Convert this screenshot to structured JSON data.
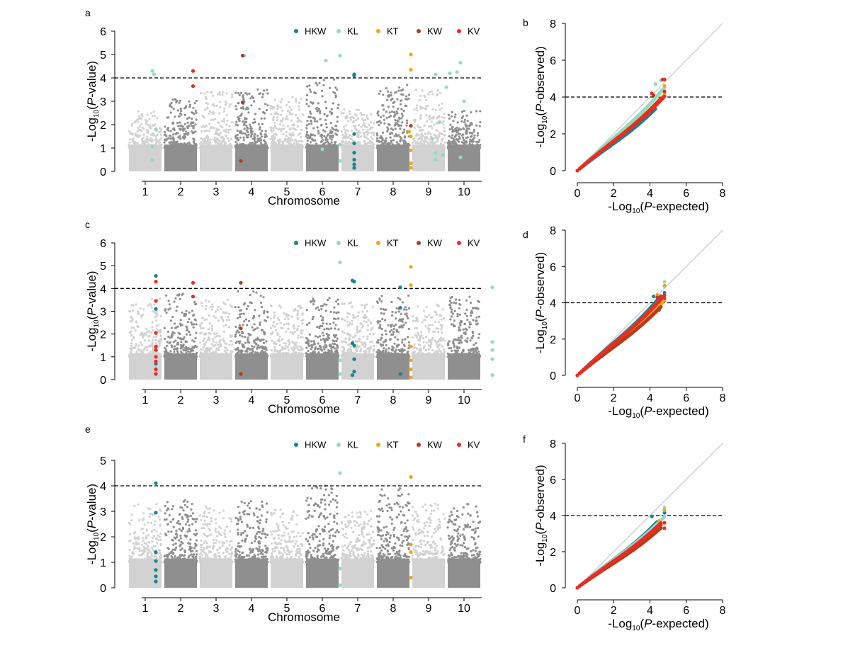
{
  "colors": {
    "chr_light": "#d2d2d2",
    "chr_dark": "#8f8f8f",
    "HKW": "#14858e",
    "KL": "#8fdcc6",
    "KT": "#f5a31a",
    "KW": "#b23e18",
    "KV": "#ee2a24",
    "diagonal": "#c8c8c8"
  },
  "legend": [
    "HKW",
    "KL",
    "KT",
    "KW",
    "KV"
  ],
  "chart_data": [
    {
      "panel": "a",
      "type": "scatter",
      "subtype": "manhattan",
      "xlabel": "Chromosome",
      "ylabel": "-Log10(P-value)",
      "ylim": [
        0,
        6
      ],
      "yticks": [
        0,
        1,
        2,
        3,
        4,
        5,
        6
      ],
      "categories": [
        "1",
        "2",
        "3",
        "4",
        "5",
        "6",
        "7",
        "8",
        "9",
        "10"
      ],
      "threshold": 4,
      "background_max": [
        2.6,
        3.1,
        3.4,
        3.6,
        3.2,
        4.1,
        2.7,
        3.7,
        3.5,
        2.6
      ],
      "series": [
        {
          "name": "HKW",
          "points": [
            [
              6.4,
              4.15
            ],
            [
              6.4,
              4.1
            ],
            [
              6.4,
              1.6
            ],
            [
              6.4,
              1.2
            ],
            [
              6.4,
              0.8
            ],
            [
              6.4,
              0.5
            ],
            [
              6.4,
              0.3
            ],
            [
              6.4,
              0.15
            ]
          ]
        },
        {
          "name": "KL",
          "points": [
            [
              0.7,
              4.3
            ],
            [
              0.75,
              4.15
            ],
            [
              0.8,
              1.8
            ],
            [
              0.7,
              1.05
            ],
            [
              0.7,
              0.5
            ],
            [
              3.3,
              4.95
            ],
            [
              5.6,
              4.75
            ],
            [
              5.5,
              0.95
            ],
            [
              6.0,
              4.95
            ],
            [
              6.0,
              1.15
            ],
            [
              6.0,
              0.45
            ],
            [
              8.7,
              4.15
            ],
            [
              8.8,
              2.1
            ],
            [
              8.6,
              1.4
            ],
            [
              8.7,
              0.8
            ],
            [
              8.7,
              0.5
            ],
            [
              9.1,
              4.2
            ],
            [
              9.0,
              3.6
            ],
            [
              9.3,
              4.25
            ],
            [
              9.4,
              4.65
            ],
            [
              9.5,
              3.0
            ],
            [
              9.4,
              0.6
            ],
            [
              8.9,
              0.7
            ]
          ]
        },
        {
          "name": "KT",
          "points": [
            [
              8.0,
              5.0
            ],
            [
              8.0,
              4.35
            ],
            [
              7.95,
              1.7
            ],
            [
              8.0,
              1.5
            ],
            [
              8.0,
              0.9
            ],
            [
              8.0,
              0.35
            ],
            [
              8.0,
              0.15
            ]
          ]
        },
        {
          "name": "KW",
          "points": [
            [
              3.25,
              4.95
            ],
            [
              3.25,
              2.95
            ],
            [
              3.2,
              0.45
            ],
            [
              8.0,
              1.95
            ]
          ]
        },
        {
          "name": "KV",
          "points": [
            [
              1.85,
              4.3
            ],
            [
              1.85,
              3.65
            ]
          ]
        }
      ]
    },
    {
      "panel": "b",
      "type": "scatter",
      "subtype": "qq",
      "xlabel": "-Log10(P-expected)",
      "ylabel": "-Log10(P-observed)",
      "xlim": [
        0,
        8
      ],
      "ylim": [
        0,
        8
      ],
      "xticks": [
        0,
        2,
        4,
        6,
        8
      ],
      "yticks": [
        0,
        2,
        4,
        6,
        8
      ],
      "threshold": 4,
      "series": [
        {
          "name": "HKW",
          "max_expected": 4.3,
          "slope": 0.78,
          "tail": [
            [
              4.2,
              3.4
            ],
            [
              4.8,
              4.15
            ]
          ]
        },
        {
          "name": "KL",
          "max_expected": 4.8,
          "slope": 0.94,
          "tail": [
            [
              4.3,
              4.7
            ],
            [
              4.6,
              4.9
            ],
            [
              4.8,
              4.95
            ]
          ]
        },
        {
          "name": "KT",
          "max_expected": 4.8,
          "slope": 0.86,
          "tail": [
            [
              4.8,
              4.6
            ],
            [
              4.8,
              4.3
            ]
          ]
        },
        {
          "name": "KW",
          "max_expected": 4.6,
          "slope": 0.85,
          "tail": [
            [
              4.2,
              4.1
            ],
            [
              4.7,
              4.95
            ]
          ]
        },
        {
          "name": "KV",
          "max_expected": 4.8,
          "slope": 0.84,
          "tail": [
            [
              4.1,
              4.2
            ],
            [
              4.8,
              4.3
            ],
            [
              4.8,
              4.95
            ]
          ]
        }
      ]
    },
    {
      "panel": "c",
      "type": "scatter",
      "subtype": "manhattan",
      "xlabel": "Chromosome",
      "ylabel": "-Log10(P-value)",
      "ylim": [
        0,
        6
      ],
      "yticks": [
        0,
        1,
        2,
        3,
        4,
        5,
        6
      ],
      "categories": [
        "1",
        "2",
        "3",
        "4",
        "5",
        "6",
        "7",
        "8",
        "9",
        "10"
      ],
      "threshold": 4,
      "background_max": [
        3.6,
        3.8,
        3.6,
        3.9,
        3.3,
        3.6,
        3.4,
        3.7,
        3.3,
        3.7
      ],
      "series": [
        {
          "name": "HKW",
          "points": [
            [
              0.8,
              4.55
            ],
            [
              0.8,
              3.1
            ],
            [
              0.8,
              0.7
            ],
            [
              6.35,
              4.35
            ],
            [
              6.4,
              4.3
            ],
            [
              6.35,
              1.6
            ],
            [
              6.4,
              1.5
            ],
            [
              6.4,
              0.9
            ],
            [
              6.4,
              0.35
            ],
            [
              6.35,
              0.2
            ],
            [
              7.7,
              4.05
            ],
            [
              7.7,
              3.15
            ],
            [
              7.7,
              0.25
            ]
          ]
        },
        {
          "name": "KL",
          "points": [
            [
              6.0,
              5.15
            ],
            [
              6.0,
              0.85
            ],
            [
              6.0,
              0.25
            ],
            [
              10.3,
              4.05
            ],
            [
              10.3,
              1.65
            ],
            [
              10.3,
              1.3
            ],
            [
              10.3,
              0.9
            ],
            [
              10.3,
              0.2
            ]
          ]
        },
        {
          "name": "KT",
          "points": [
            [
              8.0,
              4.95
            ],
            [
              8.0,
              4.15
            ],
            [
              8.0,
              1.45
            ],
            [
              8.0,
              0.85
            ],
            [
              8.0,
              0.45
            ],
            [
              8.0,
              0.1
            ]
          ]
        },
        {
          "name": "KW",
          "points": [
            [
              3.2,
              4.25
            ],
            [
              3.2,
              2.25
            ],
            [
              3.2,
              0.25
            ]
          ]
        },
        {
          "name": "KV",
          "points": [
            [
              0.8,
              4.3
            ],
            [
              0.8,
              3.45
            ],
            [
              0.8,
              2.05
            ],
            [
              0.8,
              1.45
            ],
            [
              0.8,
              1.3
            ],
            [
              0.8,
              1.0
            ],
            [
              0.8,
              0.8
            ],
            [
              0.8,
              0.45
            ],
            [
              0.8,
              0.25
            ],
            [
              1.85,
              4.25
            ],
            [
              1.85,
              3.65
            ]
          ]
        }
      ]
    },
    {
      "panel": "d",
      "type": "scatter",
      "subtype": "qq",
      "xlabel": "-Log10(P-expected)",
      "ylabel": "-Log10(P-observed)",
      "xlim": [
        0,
        8
      ],
      "ylim": [
        0,
        8
      ],
      "xticks": [
        0,
        2,
        4,
        6,
        8
      ],
      "yticks": [
        0,
        2,
        4,
        6,
        8
      ],
      "threshold": 4,
      "series": [
        {
          "name": "HKW",
          "max_expected": 4.6,
          "slope": 0.95,
          "tail": [
            [
              4.2,
              4.35
            ],
            [
              4.8,
              4.55
            ]
          ]
        },
        {
          "name": "KL",
          "max_expected": 4.8,
          "slope": 0.92,
          "tail": [
            [
              4.8,
              5.15
            ],
            [
              4.8,
              4.9
            ]
          ]
        },
        {
          "name": "KT",
          "max_expected": 4.8,
          "slope": 0.86,
          "tail": [
            [
              4.4,
              4.45
            ],
            [
              4.8,
              4.95
            ]
          ]
        },
        {
          "name": "KW",
          "max_expected": 4.6,
          "slope": 0.82,
          "tail": [
            [
              4.5,
              3.6
            ],
            [
              4.6,
              4.25
            ]
          ]
        },
        {
          "name": "KV",
          "max_expected": 4.8,
          "slope": 0.92,
          "tail": [
            [
              4.4,
              4.3
            ],
            [
              4.8,
              4.25
            ]
          ]
        }
      ]
    },
    {
      "panel": "e",
      "type": "scatter",
      "subtype": "manhattan",
      "xlabel": "Chromosome",
      "ylabel": "-Log10(P-value)",
      "ylim": [
        0,
        5
      ],
      "yticks": [
        0,
        1,
        2,
        3,
        4,
        5
      ],
      "categories": [
        "1",
        "2",
        "3",
        "4",
        "5",
        "6",
        "7",
        "8",
        "9",
        "10"
      ],
      "threshold": 4,
      "background_max": [
        3.3,
        3.5,
        3.2,
        3.4,
        3.1,
        4.05,
        3.1,
        3.9,
        3.3,
        3.3
      ],
      "series": [
        {
          "name": "HKW",
          "points": [
            [
              0.8,
              4.1
            ],
            [
              0.8,
              2.95
            ],
            [
              0.8,
              1.4
            ],
            [
              0.8,
              1.05
            ],
            [
              0.8,
              0.7
            ],
            [
              0.8,
              0.45
            ],
            [
              0.8,
              0.25
            ]
          ]
        },
        {
          "name": "KL",
          "points": [
            [
              6.0,
              4.5
            ],
            [
              6.0,
              0.75
            ],
            [
              6.0,
              0.1
            ]
          ]
        },
        {
          "name": "KT",
          "points": [
            [
              8.0,
              4.35
            ],
            [
              8.0,
              1.7
            ],
            [
              8.0,
              1.4
            ],
            [
              8.0,
              0.4
            ]
          ]
        },
        {
          "name": "KW",
          "points": []
        },
        {
          "name": "KV",
          "points": []
        }
      ]
    },
    {
      "panel": "f",
      "type": "scatter",
      "subtype": "qq",
      "xlabel": "-Log10(P-expected)",
      "ylabel": "-Log10(P-observed)",
      "xlim": [
        0,
        8
      ],
      "ylim": [
        0,
        8
      ],
      "xticks": [
        0,
        2,
        4,
        6,
        8
      ],
      "yticks": [
        0,
        2,
        4,
        6,
        8
      ],
      "threshold": 4,
      "series": [
        {
          "name": "HKW",
          "max_expected": 4.4,
          "slope": 0.83,
          "tail": [
            [
              4.1,
              3.95
            ],
            [
              4.8,
              4.15
            ]
          ]
        },
        {
          "name": "KL",
          "max_expected": 4.8,
          "slope": 0.82,
          "tail": [
            [
              4.8,
              4.45
            ]
          ]
        },
        {
          "name": "KT",
          "max_expected": 4.6,
          "slope": 0.74,
          "tail": [
            [
              4.5,
              3.7
            ],
            [
              4.8,
              4.3
            ]
          ]
        },
        {
          "name": "KW",
          "max_expected": 4.6,
          "slope": 0.72,
          "tail": [
            [
              4.6,
              3.5
            ]
          ]
        },
        {
          "name": "KV",
          "max_expected": 4.6,
          "slope": 0.78,
          "tail": [
            [
              4.8,
              3.6
            ],
            [
              4.8,
              3.3
            ]
          ]
        }
      ]
    }
  ]
}
